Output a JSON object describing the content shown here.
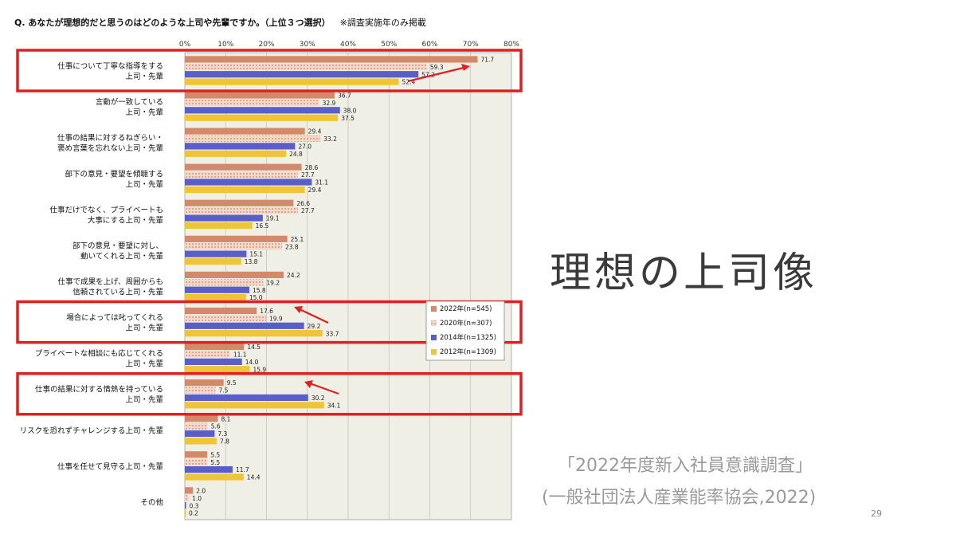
{
  "question": {
    "text": "Q.  あなたが理想的だと思うのはどのような上司や先輩ですか。（上位３つ選択）",
    "note": "※調査実施年のみ掲載"
  },
  "slide": {
    "title": "理想の上司像",
    "source_line1": "「2022年度新入社員意識調査」",
    "source_line2": "(一般社団法人産業能率協会,2022)",
    "page_number": "29"
  },
  "chart_data": {
    "type": "bar",
    "orientation": "horizontal",
    "x_ticks": [
      "0%",
      "10%",
      "20%",
      "30%",
      "40%",
      "50%",
      "60%",
      "70%",
      "80%"
    ],
    "xlim": [
      0,
      80
    ],
    "grid": true,
    "legend_position": "bottom-right",
    "categories": [
      [
        "仕事について丁寧な指導をする",
        "上司・先輩"
      ],
      [
        "言動が一致している",
        "上司・先輩"
      ],
      [
        "仕事の結果に対するねぎらい・",
        "褒め言葉を忘れない上司・先輩"
      ],
      [
        "部下の意見・要望を傾聴する",
        "上司・先輩"
      ],
      [
        "仕事だけでなく、プライベートも",
        "大事にする上司・先輩"
      ],
      [
        "部下の意見・要望に対し、",
        "動いてくれる上司・先輩"
      ],
      [
        "仕事で成果を上げ、周囲からも",
        "信頼されている上司・先輩"
      ],
      [
        "場合によっては叱ってくれる",
        "上司・先輩"
      ],
      [
        "プライベートな相談にも応じてくれる",
        "上司・先輩"
      ],
      [
        "仕事の結果に対する情熱を持っている",
        "上司・先輩"
      ],
      [
        "リスクを恐れずチャレンジする上司・先輩"
      ],
      [
        "仕事を任せて見守る上司・先輩"
      ],
      [
        "その他"
      ]
    ],
    "series": [
      {
        "name": "2022年(n=545)",
        "color": "#d4896a",
        "pattern": "solid",
        "values": [
          71.7,
          36.7,
          29.4,
          28.6,
          26.6,
          25.1,
          24.2,
          17.6,
          14.5,
          9.5,
          8.1,
          5.5,
          2.0
        ]
      },
      {
        "name": "2020年(n=307)",
        "color": "#eab8a2",
        "pattern": "dotted",
        "values": [
          59.3,
          32.9,
          33.2,
          27.7,
          27.7,
          23.8,
          19.2,
          19.9,
          11.1,
          7.5,
          5.6,
          5.5,
          1.0
        ]
      },
      {
        "name": "2014年(n=1325)",
        "color": "#5a5ec8",
        "pattern": "solid",
        "values": [
          57.2,
          38.0,
          27.0,
          31.1,
          19.1,
          15.1,
          15.8,
          29.2,
          14.0,
          30.2,
          7.3,
          11.7,
          0.3
        ]
      },
      {
        "name": "2012年(n=1309)",
        "color": "#f0c437",
        "pattern": "solid",
        "values": [
          52.4,
          37.5,
          24.8,
          29.4,
          16.5,
          13.8,
          15.0,
          33.7,
          15.9,
          34.1,
          7.8,
          14.4,
          0.2
        ]
      }
    ],
    "highlighted_categories": [
      0,
      7,
      9
    ],
    "highlight_color": "#e02020"
  }
}
